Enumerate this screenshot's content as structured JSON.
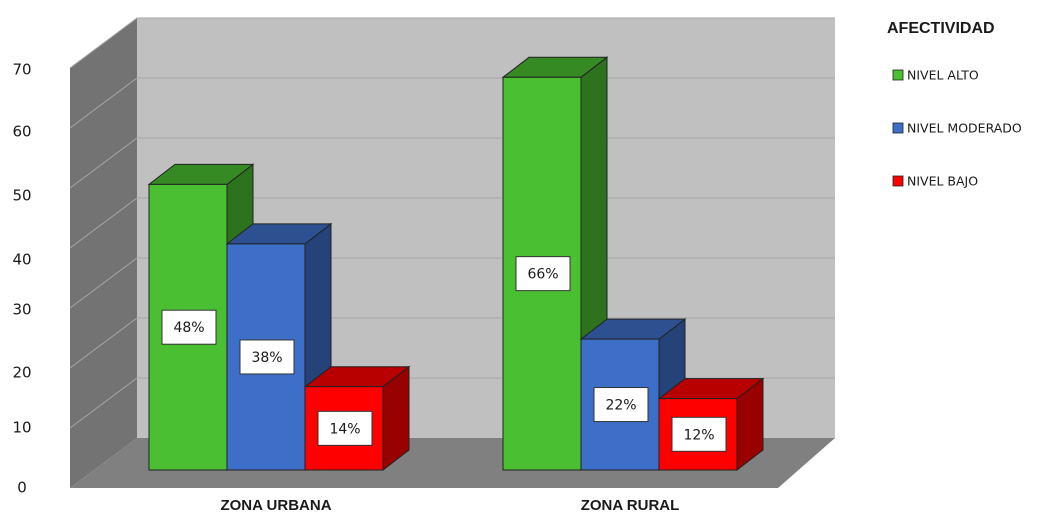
{
  "chart_data": {
    "type": "bar",
    "categories": [
      "ZONA URBANA",
      "ZONA RURAL"
    ],
    "series": [
      {
        "name": "NIVEL ALTO",
        "color": "#4bbf32",
        "values": [
          48,
          66
        ],
        "labels": [
          "48%",
          "66%"
        ]
      },
      {
        "name": "NIVEL MODERADO",
        "color": "#3d6fc8",
        "values": [
          38,
          22
        ],
        "labels": [
          "38%",
          "22%"
        ]
      },
      {
        "name": "NIVEL BAJO",
        "color": "#ff0000",
        "values": [
          14,
          12
        ],
        "labels": [
          "14%",
          "12%"
        ]
      }
    ],
    "legend_title": "AFECTIVIDAD",
    "legend_position": "right",
    "yticks": [
      "0",
      "10",
      "20",
      "30",
      "40",
      "50",
      "60",
      "70"
    ],
    "ylim": [
      0,
      70
    ],
    "grid": true,
    "style": "3d-clustered-column"
  }
}
